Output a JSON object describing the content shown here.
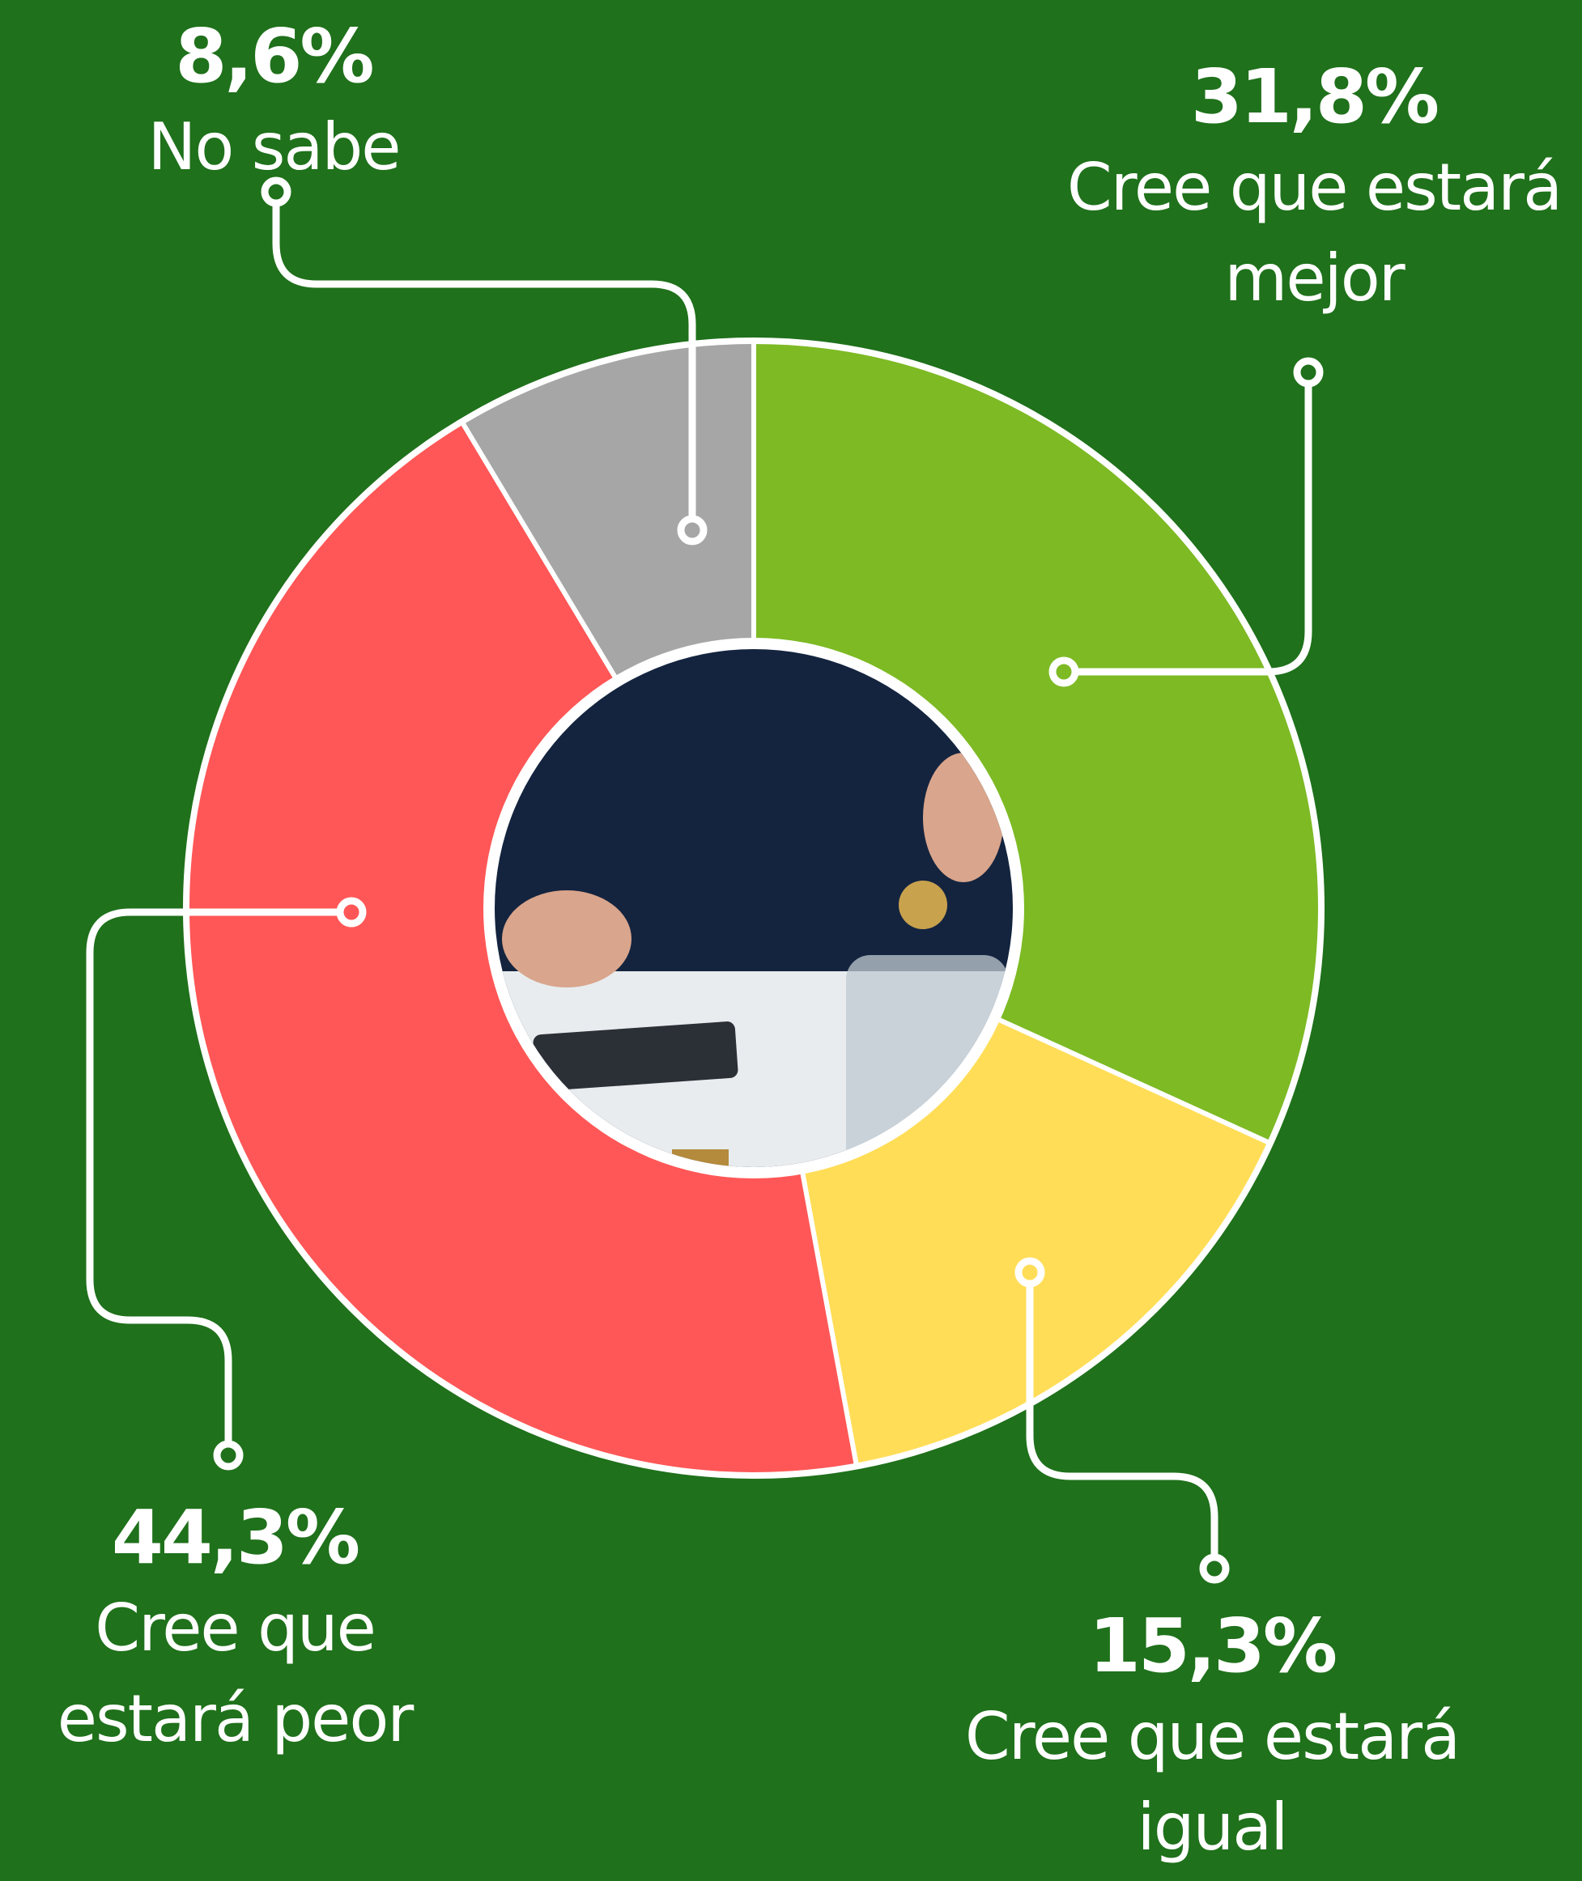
{
  "chart_data": {
    "type": "donut",
    "categories": [
      "Cree que estará mejor",
      "Cree que estará igual",
      "Cree que estará peor",
      "No sabe"
    ],
    "values": [
      31.8,
      15.3,
      44.3,
      8.6
    ],
    "value_labels": [
      "31,8%",
      "15,3%",
      "44,3%",
      "8,6%"
    ],
    "colors": [
      "#7dba24",
      "#ffdd57",
      "#ff5757",
      "#a6a6a6"
    ]
  }
}
